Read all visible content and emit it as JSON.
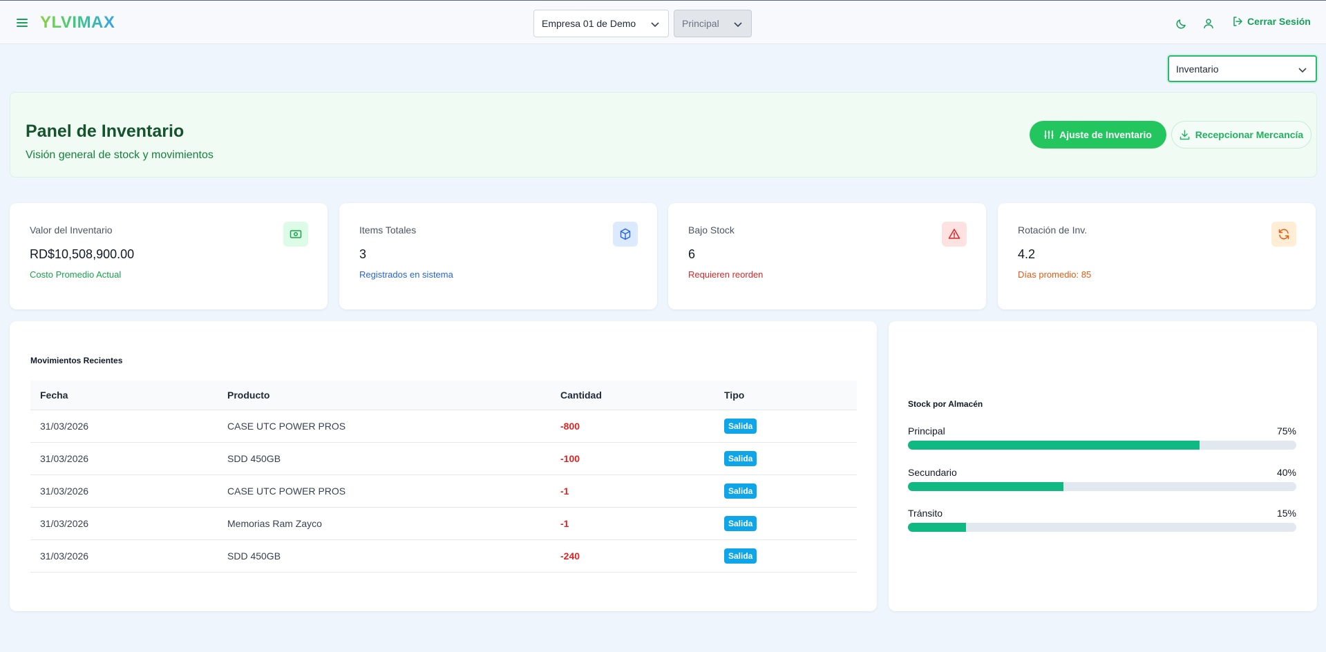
{
  "header": {
    "logo": "YLVIMAX",
    "company": "Empresa 01 de Demo",
    "branch": "Principal",
    "logout_label": "Cerrar Sesión"
  },
  "module_select": "Inventario",
  "hero": {
    "title": "Panel de Inventario",
    "subtitle": "Visión general de stock y movimientos",
    "adjust_label": "Ajuste de Inventario",
    "receive_label": "Recepcionar Mercancía"
  },
  "cards": [
    {
      "label": "Valor del Inventario",
      "value": "RD$10,508,900.00",
      "note": "Costo Promedio Actual",
      "icon": "cash-icon",
      "color": "#16a34a"
    },
    {
      "label": "Items Totales",
      "value": "3",
      "note": "Registrados en sistema",
      "icon": "box-icon",
      "color": "#2563eb"
    },
    {
      "label": "Bajo Stock",
      "value": "6",
      "note": "Requieren reorden",
      "icon": "warning-icon",
      "color": "#dc2626"
    },
    {
      "label": "Rotación de Inv.",
      "value": "4.2",
      "note": "Días promedio: 85",
      "icon": "refresh-icon",
      "color": "#ea580c"
    }
  ],
  "movements": {
    "title": "Movimientos Recientes",
    "columns": [
      "Fecha",
      "Producto",
      "Cantidad",
      "Tipo"
    ],
    "rows": [
      {
        "fecha": "31/03/2026",
        "producto": "CASE UTC POWER PROS",
        "cantidad": "-800",
        "tipo": "Salida"
      },
      {
        "fecha": "31/03/2026",
        "producto": "SDD 450GB",
        "cantidad": "-100",
        "tipo": "Salida"
      },
      {
        "fecha": "31/03/2026",
        "producto": "CASE UTC POWER PROS",
        "cantidad": "-1",
        "tipo": "Salida"
      },
      {
        "fecha": "31/03/2026",
        "producto": "Memorias Ram Zayco",
        "cantidad": "-1",
        "tipo": "Salida"
      },
      {
        "fecha": "31/03/2026",
        "producto": "SDD 450GB",
        "cantidad": "-240",
        "tipo": "Salida"
      }
    ]
  },
  "stock": {
    "title": "Stock por Almacén",
    "bars": [
      {
        "name": "Principal",
        "percent_label": "75%",
        "percent": 75
      },
      {
        "name": "Secundario",
        "percent_label": "40%",
        "percent": 40
      },
      {
        "name": "Tránsito",
        "percent_label": "15%",
        "percent": 15
      }
    ]
  }
}
